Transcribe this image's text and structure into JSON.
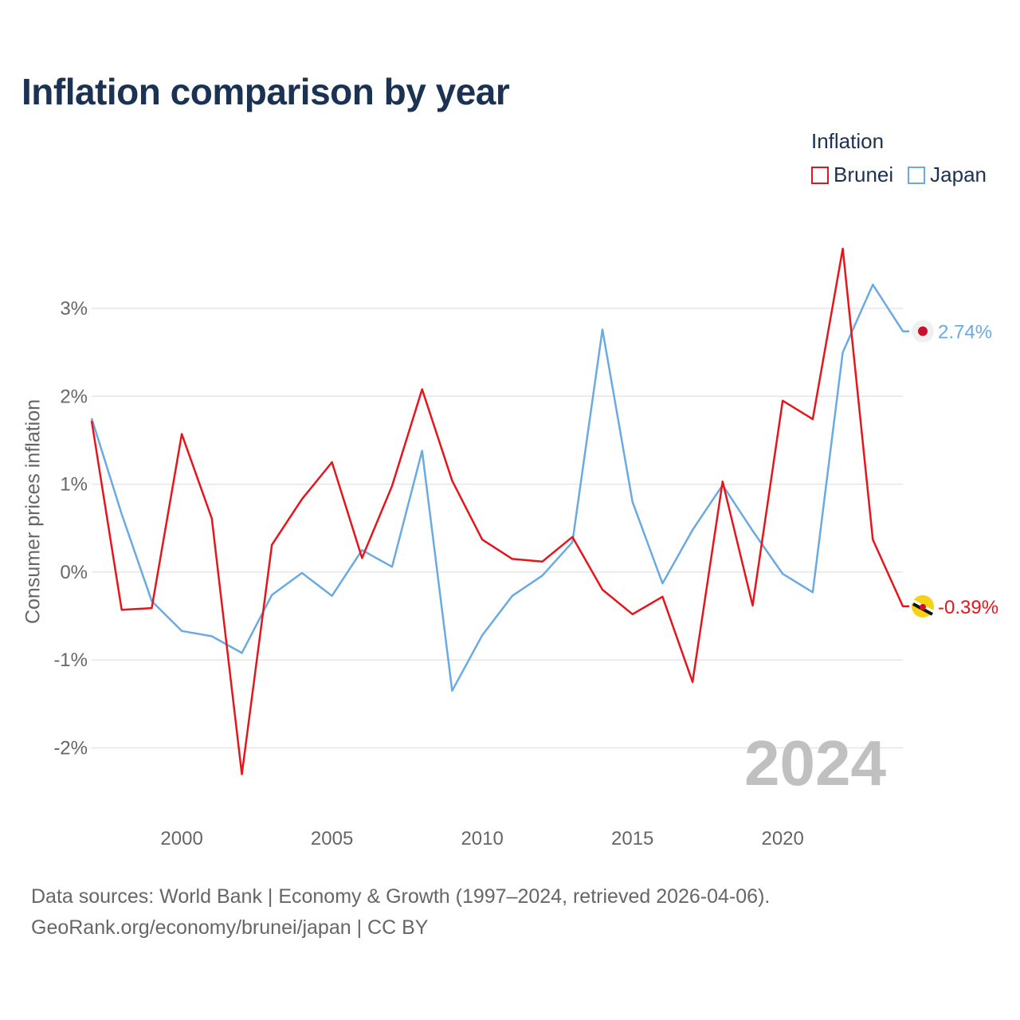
{
  "title": "Inflation comparison by year",
  "legend_title": "Inflation",
  "year_label": "2024",
  "sources_line1": "Data sources: World Bank | Economy & Growth (1997–2024, retrieved 2026-04-06).",
  "sources_line2": "GeoRank.org/economy/brunei/japan | CC BY",
  "chart_data": {
    "type": "line",
    "title": "Inflation comparison by year",
    "xlabel": "",
    "ylabel": "Consumer prices inflation",
    "xlim": [
      1997,
      2024
    ],
    "ylim": [
      -2.6,
      3.9
    ],
    "xticks": [
      2000,
      2005,
      2010,
      2015,
      2020
    ],
    "yticks": [
      -2,
      -1,
      0,
      1,
      2,
      3
    ],
    "ytick_labels": [
      "-2%",
      "-1%",
      "0%",
      "1%",
      "2%",
      "3%"
    ],
    "grid": true,
    "legend_position": "top-right",
    "x": [
      1997,
      1998,
      1999,
      2000,
      2001,
      2002,
      2003,
      2004,
      2005,
      2006,
      2007,
      2008,
      2009,
      2010,
      2011,
      2012,
      2013,
      2014,
      2015,
      2016,
      2017,
      2018,
      2019,
      2020,
      2021,
      2022,
      2023,
      2024
    ],
    "series": [
      {
        "name": "Brunei",
        "color": "#e8141b",
        "end_label": "-0.39%",
        "values": [
          1.72,
          -0.43,
          -0.41,
          1.57,
          0.61,
          -2.3,
          0.31,
          0.83,
          1.25,
          0.16,
          0.98,
          2.08,
          1.04,
          0.37,
          0.15,
          0.12,
          0.4,
          -0.2,
          -0.48,
          -0.28,
          -1.25,
          1.03,
          -0.38,
          1.95,
          1.74,
          3.68,
          0.37,
          -0.39
        ]
      },
      {
        "name": "Japan",
        "color": "#6aaae4",
        "end_label": "2.74%",
        "values": [
          1.75,
          0.66,
          -0.33,
          -0.67,
          -0.73,
          -0.92,
          -0.26,
          -0.01,
          -0.27,
          0.25,
          0.06,
          1.38,
          -1.35,
          -0.72,
          -0.27,
          -0.04,
          0.34,
          2.76,
          0.8,
          -0.13,
          0.48,
          0.99,
          0.47,
          -0.02,
          -0.23,
          2.5,
          3.27,
          2.74
        ]
      }
    ]
  }
}
